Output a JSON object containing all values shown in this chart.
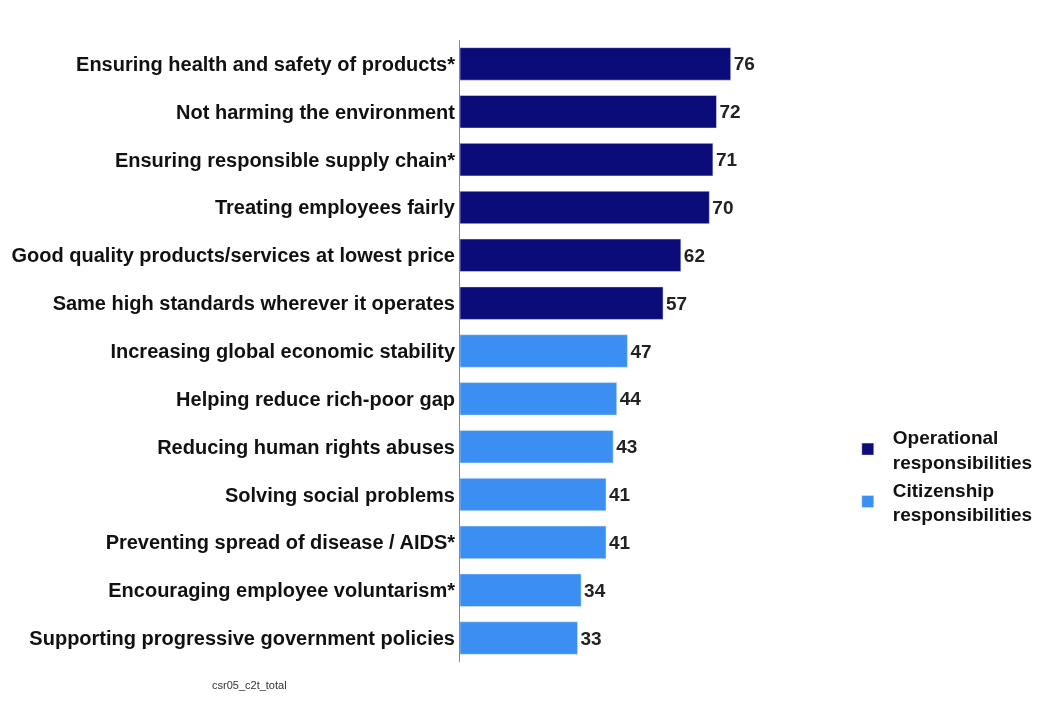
{
  "chart_data": {
    "type": "bar",
    "orientation": "horizontal",
    "data_labels": true,
    "legend": "right",
    "categories": [
      "Ensuring health and safety of products*",
      "Not harming the environment",
      "Ensuring responsible supply chain*",
      "Treating employees fairly",
      "Good quality products/services at lowest price",
      "Same high standards wherever it operates",
      "Increasing global economic stability",
      "Helping reduce rich-poor gap",
      "Reducing human rights abuses",
      "Solving social problems",
      "Preventing spread of disease / AIDS*",
      "Encouraging employee voluntarism*",
      "Supporting progressive government policies"
    ],
    "series": [
      {
        "name": "Operational responsibilities",
        "color": "#0b0b7a",
        "values": [
          76,
          72,
          71,
          70,
          62,
          57,
          null,
          null,
          null,
          null,
          null,
          null,
          null
        ]
      },
      {
        "name": "Citizenship responsibilities",
        "color": "#3b8ff2",
        "values": [
          null,
          null,
          null,
          null,
          null,
          null,
          47,
          44,
          43,
          41,
          41,
          34,
          33
        ]
      }
    ],
    "annotations": [
      "csr05_c2t_total"
    ]
  }
}
